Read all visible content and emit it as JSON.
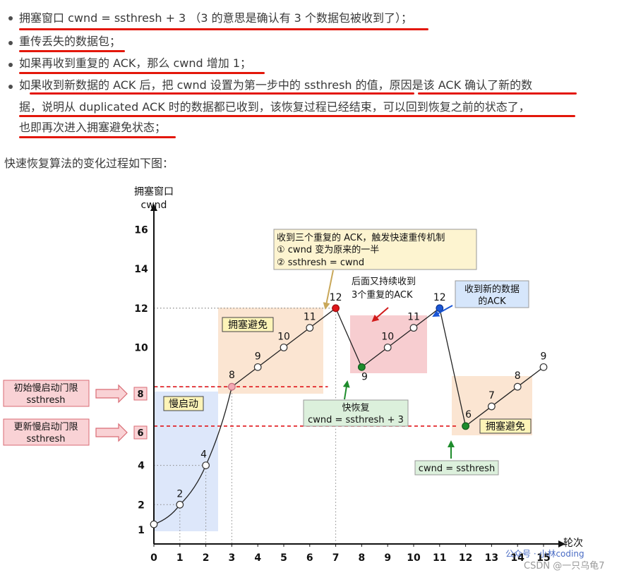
{
  "bullets": [
    "拥塞窗口 cwnd = ssthresh + 3 （3 的意思是确认有 3 个数据包被收到了）；",
    "重传丢失的数据包；",
    "如果再收到重复的 ACK，那么 cwnd 增加 1；",
    "如果收到新数据的 ACK 后，把 cwnd 设置为第一步中的 ssthresh 的值，原因是该 ACK 确认了新的数",
    "据，说明从 duplicated ACK 时的数据都已收到，该恢复过程已经结束，可以回到恢复之前的状态了，",
    "也即再次进入拥塞避免状态；"
  ],
  "intro": "快速恢复算法的变化过程如下图：",
  "figure": {
    "y_axis_label_1": "拥塞窗口",
    "y_axis_label_2": "cwnd",
    "x_axis_label": "轮次",
    "x_ticks": [
      "0",
      "1",
      "2",
      "3",
      "4",
      "5",
      "6",
      "7",
      "8",
      "9",
      "10",
      "11",
      "12",
      "13",
      "14",
      "15"
    ],
    "y_ticks": [
      "2",
      "4",
      "6",
      "8",
      "10",
      "12",
      "14",
      "16"
    ],
    "origin_y_label": "1",
    "ssthresh_initial_label": "初始慢启动门限",
    "ssthresh_initial_sub": "ssthresh",
    "ssthresh_updated_label": "更新慢启动门限",
    "ssthresh_updated_sub": "ssthresh",
    "badge_8": "8",
    "badge_6": "6",
    "region_slow_start": "慢启动",
    "region_ca1": "拥塞避免",
    "region_ca2": "拥塞避免",
    "note_triple_ack_1": "收到三个重复的 ACK，触发快速重传机制",
    "note_triple_ack_2": "① cwnd 变为原来的一半",
    "note_triple_ack_3": "② ssthresh = cwnd",
    "note_more_dup_1": "后面又持续收到",
    "note_more_dup_2": "3个重复的ACK",
    "note_new_ack_1": "收到新的数据",
    "note_new_ack_2": "的ACK",
    "note_fast_recovery_1": "快恢复",
    "note_fast_recovery_2": "cwnd = ssthresh + 3",
    "note_reset": "cwnd = ssthresh",
    "watermark_1": "公众号 · 小林coding",
    "watermark_2": "CSDN @一只乌龟7",
    "colors": {
      "underline": "#e3170a",
      "slow_start_fill": "#dde7fa",
      "ca_fill": "#fbe5d2",
      "dup_fill": "#f7cdd0",
      "note_yellow": "#fdf4d0",
      "note_blue": "#d6e6fb",
      "note_green": "#dcf0dc",
      "red_point": "#e0161b",
      "green_point": "#1e8c2c",
      "blue_point": "#1a56d6",
      "pink_point": "#f2a8b3"
    }
  },
  "chart_data": {
    "type": "line",
    "xlabel": "轮次",
    "ylabel": "拥塞窗口 cwnd",
    "xlim": [
      0,
      15
    ],
    "ylim": [
      0,
      17
    ],
    "series": [
      {
        "x": [
          0,
          1,
          2,
          3,
          4,
          5,
          6,
          7,
          8,
          9,
          10,
          11,
          12,
          13,
          14,
          15
        ],
        "values": [
          1,
          2,
          4,
          8,
          9,
          10,
          11,
          12,
          9,
          10,
          11,
          12,
          6,
          7,
          8,
          9
        ]
      }
    ],
    "point_labels": [
      "1",
      "2",
      "4",
      "8",
      "9",
      "10",
      "11",
      "12",
      "9",
      "10",
      "11",
      "12",
      "6",
      "7",
      "8",
      "9"
    ],
    "thresholds": [
      8,
      6
    ]
  }
}
